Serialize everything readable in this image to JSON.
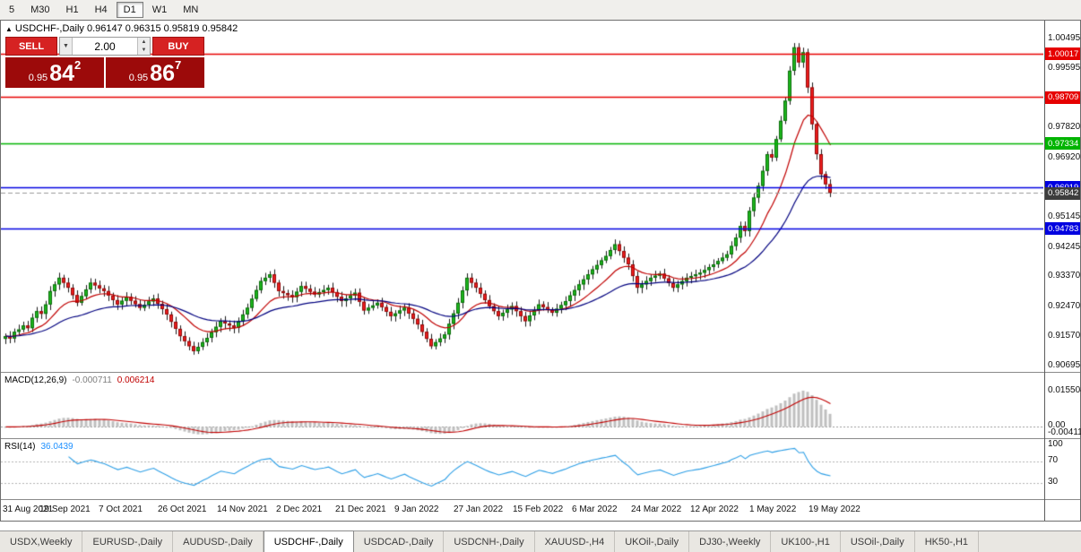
{
  "toolbar": {
    "timeframes": [
      {
        "label": "5",
        "active": false
      },
      {
        "label": "M30",
        "active": false
      },
      {
        "label": "H1",
        "active": false
      },
      {
        "label": "H4",
        "active": false
      },
      {
        "label": "D1",
        "active": true
      },
      {
        "label": "W1",
        "active": false
      },
      {
        "label": "MN",
        "active": false
      }
    ]
  },
  "header": {
    "expand_icon": "▲",
    "title": "USDCHF-,Daily 0.96147 0.96315 0.95819 0.95842"
  },
  "trade_panel": {
    "sell_label": "SELL",
    "buy_label": "BUY",
    "volume": "2.00",
    "bid_prefix": "0.95",
    "bid_big": "84",
    "bid_sup": "2",
    "ask_prefix": "0.95",
    "ask_big": "86",
    "ask_sup": "7"
  },
  "macd_panel": {
    "name": "MACD(12,26,9)",
    "value_main": "-0.000711",
    "value_signal": "0.006214",
    "axis": [
      {
        "text": "0.015504",
        "value": 0.015504
      },
      {
        "text": "0.00",
        "value": 0.0
      },
      {
        "text": "-0.004118",
        "value": -0.004118
      }
    ],
    "range": [
      -0.005,
      0.0235
    ],
    "histogram_color": "#bfbfbf",
    "signal_color": "#c00000"
  },
  "rsi_panel": {
    "name": "RSI(14)",
    "value": "36.0439",
    "axis": [
      {
        "text": "100",
        "value": 100
      },
      {
        "text": "70",
        "value": 70
      },
      {
        "text": "30",
        "value": 30
      }
    ],
    "range": [
      0,
      110
    ],
    "level_lines": [
      70,
      30
    ],
    "line_color": "#2e9fe6"
  },
  "chart_data": {
    "type": "candlestick",
    "title": "USDCHF-,Daily",
    "price_range": [
      0.9048,
      1.01
    ],
    "x_labels": [
      "31 Aug 2021",
      "19 Sep 2021",
      "7 Oct 2021",
      "26 Oct 2021",
      "14 Nov 2021",
      "2 Dec 2021",
      "21 Dec 2021",
      "9 Jan 2022",
      "27 Jan 2022",
      "15 Feb 2022",
      "6 Mar 2022",
      "24 Mar 2022",
      "12 Apr 2022",
      "1 May 2022",
      "19 May 2022"
    ],
    "axis_ticks": [
      {
        "text": "1.00495",
        "value": 1.00495
      },
      {
        "text": "0.99595",
        "value": 0.99595
      },
      {
        "text": "0.97820",
        "value": 0.9782
      },
      {
        "text": "0.96920",
        "value": 0.9692
      },
      {
        "text": "0.95145",
        "value": 0.95145
      },
      {
        "text": "0.94245",
        "value": 0.94245
      },
      {
        "text": "0.93370",
        "value": 0.9337
      },
      {
        "text": "0.92470",
        "value": 0.9247
      },
      {
        "text": "0.91570",
        "value": 0.9157
      },
      {
        "text": "0.90695",
        "value": 0.90695
      }
    ],
    "levels": [
      {
        "price": 1.00017,
        "label": "1.00017",
        "color": "#e60000"
      },
      {
        "price": 0.98709,
        "label": "0.98709",
        "color": "#e60000"
      },
      {
        "price": 0.97334,
        "label": "0.97334",
        "color": "#00b400"
      },
      {
        "price": 0.96019,
        "label": "0.96019",
        "color": "#0000e0"
      },
      {
        "price": 0.94783,
        "label": "0.94783",
        "color": "#0000e0"
      }
    ],
    "current_price": {
      "value": 0.95842,
      "text": "0.95842",
      "color": "#3d3d3d"
    },
    "moving_averages": [
      {
        "period": 13,
        "color": "#c00000"
      },
      {
        "period": 34,
        "color": "#00007f"
      }
    ],
    "candle_colors": {
      "up": "#1cb71c",
      "up_border": "#0b6b0b",
      "down": "#ef1c1c",
      "down_border": "#8f0b0b",
      "wick": "#1a1a1a"
    },
    "closes": [
      0.9155,
      0.9148,
      0.9168,
      0.9175,
      0.9187,
      0.9179,
      0.921,
      0.923,
      0.9222,
      0.925,
      0.929,
      0.931,
      0.933,
      0.9315,
      0.93,
      0.9278,
      0.9255,
      0.9275,
      0.9295,
      0.9315,
      0.9307,
      0.9298,
      0.929,
      0.9277,
      0.9263,
      0.925,
      0.9261,
      0.9272,
      0.9261,
      0.9251,
      0.924,
      0.9249,
      0.9259,
      0.9268,
      0.9252,
      0.9236,
      0.922,
      0.9198,
      0.9177,
      0.9155,
      0.914,
      0.9125,
      0.911,
      0.9123,
      0.9137,
      0.915,
      0.9167,
      0.9183,
      0.92,
      0.9193,
      0.9187,
      0.918,
      0.92,
      0.922,
      0.924,
      0.9267,
      0.9293,
      0.932,
      0.933,
      0.934,
      0.9315,
      0.929,
      0.9284,
      0.9278,
      0.9272,
      0.9288,
      0.9305,
      0.9297,
      0.9288,
      0.928,
      0.9287,
      0.9293,
      0.93,
      0.9287,
      0.9273,
      0.926,
      0.9268,
      0.9277,
      0.9285,
      0.9258,
      0.9232,
      0.924,
      0.9247,
      0.9255,
      0.9242,
      0.9228,
      0.9215,
      0.9223,
      0.9232,
      0.924,
      0.9223,
      0.9207,
      0.919,
      0.9168,
      0.9147,
      0.9125,
      0.9137,
      0.9148,
      0.916,
      0.9192,
      0.9223,
      0.9255,
      0.9292,
      0.933,
      0.9315,
      0.93,
      0.9282,
      0.9263,
      0.9245,
      0.923,
      0.9215,
      0.9225,
      0.9235,
      0.9245,
      0.923,
      0.9215,
      0.92,
      0.9217,
      0.9233,
      0.925,
      0.9242,
      0.9233,
      0.9225,
      0.9237,
      0.9248,
      0.926,
      0.9277,
      0.9293,
      0.931,
      0.9325,
      0.934,
      0.9355,
      0.9368,
      0.9382,
      0.9395,
      0.9413,
      0.943,
      0.941,
      0.939,
      0.937,
      0.9335,
      0.93,
      0.931,
      0.932,
      0.933,
      0.9336,
      0.9342,
      0.9328,
      0.9314,
      0.93,
      0.931,
      0.932,
      0.933,
      0.9335,
      0.934,
      0.9345,
      0.9353,
      0.9362,
      0.937,
      0.938,
      0.939,
      0.94,
      0.9425,
      0.945,
      0.9485,
      0.947,
      0.953,
      0.957,
      0.9605,
      0.965,
      0.97,
      0.969,
      0.9745,
      0.98,
      0.986,
      0.995,
      1.002,
      0.9975,
      1.0005,
      0.99,
      0.979,
      0.97,
      0.964,
      0.961,
      0.9584
    ]
  },
  "tabs": [
    {
      "label": "USDX,Weekly",
      "active": false
    },
    {
      "label": "EURUSD-,Daily",
      "active": false
    },
    {
      "label": "AUDUSD-,Daily",
      "active": false
    },
    {
      "label": "USDCHF-,Daily",
      "active": true
    },
    {
      "label": "USDCAD-,Daily",
      "active": false
    },
    {
      "label": "USDCNH-,Daily",
      "active": false
    },
    {
      "label": "XAUUSD-,H4",
      "active": false
    },
    {
      "label": "UKOil-,Daily",
      "active": false
    },
    {
      "label": "DJ30-,Weekly",
      "active": false
    },
    {
      "label": "UK100-,H1",
      "active": false
    },
    {
      "label": "USOil-,Daily",
      "active": false
    },
    {
      "label": "HK50-,H1",
      "active": false
    }
  ]
}
